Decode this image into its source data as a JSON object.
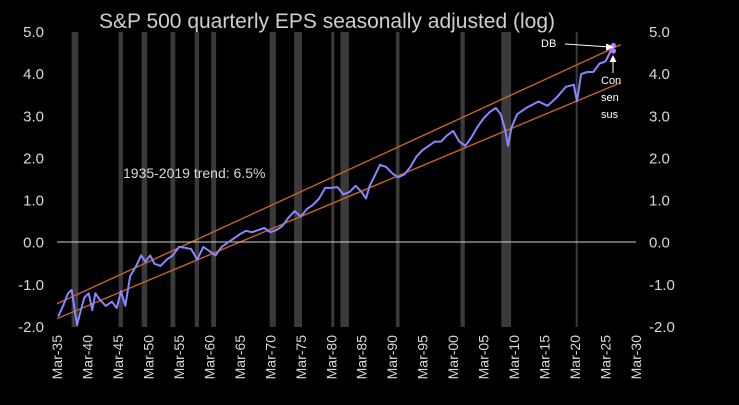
{
  "chart_data": {
    "type": "line",
    "title": "S&P 500 quarterly EPS seasonally adjusted (log)",
    "xlabel": "",
    "ylabel": "",
    "ylim": [
      -2.0,
      5.0
    ],
    "y_ticks": [
      "-2.0",
      "-1.0",
      "0.0",
      "1.0",
      "2.0",
      "3.0",
      "4.0",
      "5.0"
    ],
    "y_tick_values": [
      -2,
      -1,
      0,
      1,
      2,
      3,
      4,
      5
    ],
    "x_range": [
      1935,
      2030
    ],
    "x_tick_labels": [
      "Mar-35",
      "Mar-40",
      "Mar-45",
      "Mar-50",
      "Mar-55",
      "Mar-60",
      "Mar-65",
      "Mar-70",
      "Mar-75",
      "Mar-80",
      "Mar-85",
      "Mar-90",
      "Mar-95",
      "Mar-00",
      "Mar-05",
      "Mar-10",
      "Mar-15",
      "Mar-20",
      "Mar-25",
      "Mar-30"
    ],
    "x_tick_values": [
      1935,
      1940,
      1945,
      1950,
      1955,
      1960,
      1965,
      1970,
      1975,
      1980,
      1985,
      1990,
      1995,
      2000,
      2005,
      2010,
      2015,
      2020,
      2025,
      2030
    ],
    "grid": false,
    "recessions": [
      [
        1937.4,
        1938.5
      ],
      [
        1945.1,
        1945.8
      ],
      [
        1948.9,
        1949.8
      ],
      [
        1953.6,
        1954.4
      ],
      [
        1957.6,
        1958.3
      ],
      [
        1960.3,
        1961.1
      ],
      [
        1969.9,
        1970.9
      ],
      [
        1973.9,
        1975.2
      ],
      [
        1980.0,
        1980.5
      ],
      [
        1981.5,
        1982.9
      ],
      [
        1990.6,
        1991.2
      ],
      [
        2001.2,
        2001.9
      ],
      [
        2007.9,
        2009.5
      ],
      [
        2020.1,
        2020.4
      ]
    ],
    "series": [
      {
        "values": [
          {
            "x": 1935.2,
            "y": -1.75
          },
          {
            "x": 1936.0,
            "y": -1.5
          },
          {
            "x": 1936.8,
            "y": -1.2
          },
          {
            "x": 1937.4,
            "y": -1.12
          },
          {
            "x": 1937.9,
            "y": -1.6
          },
          {
            "x": 1938.3,
            "y": -1.95
          },
          {
            "x": 1938.9,
            "y": -1.6
          },
          {
            "x": 1939.5,
            "y": -1.3
          },
          {
            "x": 1940.2,
            "y": -1.2
          },
          {
            "x": 1940.8,
            "y": -1.6
          },
          {
            "x": 1941.3,
            "y": -1.2
          },
          {
            "x": 1942.0,
            "y": -1.35
          },
          {
            "x": 1943.0,
            "y": -1.5
          },
          {
            "x": 1944.0,
            "y": -1.4
          },
          {
            "x": 1944.8,
            "y": -1.55
          },
          {
            "x": 1945.5,
            "y": -1.15
          },
          {
            "x": 1946.2,
            "y": -1.5
          },
          {
            "x": 1947.0,
            "y": -0.8
          },
          {
            "x": 1948.0,
            "y": -0.55
          },
          {
            "x": 1948.8,
            "y": -0.3
          },
          {
            "x": 1949.5,
            "y": -0.45
          },
          {
            "x": 1950.3,
            "y": -0.3
          },
          {
            "x": 1951.0,
            "y": -0.5
          },
          {
            "x": 1952.0,
            "y": -0.55
          },
          {
            "x": 1953.0,
            "y": -0.4
          },
          {
            "x": 1954.0,
            "y": -0.3
          },
          {
            "x": 1955.0,
            "y": -0.1
          },
          {
            "x": 1956.0,
            "y": -0.12
          },
          {
            "x": 1957.0,
            "y": -0.15
          },
          {
            "x": 1958.0,
            "y": -0.4
          },
          {
            "x": 1959.0,
            "y": -0.1
          },
          {
            "x": 1960.0,
            "y": -0.2
          },
          {
            "x": 1961.0,
            "y": -0.3
          },
          {
            "x": 1962.0,
            "y": -0.1
          },
          {
            "x": 1963.0,
            "y": 0.0
          },
          {
            "x": 1964.0,
            "y": 0.1
          },
          {
            "x": 1965.0,
            "y": 0.2
          },
          {
            "x": 1966.0,
            "y": 0.28
          },
          {
            "x": 1967.0,
            "y": 0.25
          },
          {
            "x": 1968.0,
            "y": 0.3
          },
          {
            "x": 1969.0,
            "y": 0.35
          },
          {
            "x": 1970.0,
            "y": 0.25
          },
          {
            "x": 1971.0,
            "y": 0.3
          },
          {
            "x": 1972.0,
            "y": 0.4
          },
          {
            "x": 1973.0,
            "y": 0.6
          },
          {
            "x": 1974.0,
            "y": 0.75
          },
          {
            "x": 1975.0,
            "y": 0.62
          },
          {
            "x": 1976.0,
            "y": 0.8
          },
          {
            "x": 1977.0,
            "y": 0.9
          },
          {
            "x": 1978.0,
            "y": 1.05
          },
          {
            "x": 1979.0,
            "y": 1.3
          },
          {
            "x": 1980.0,
            "y": 1.3
          },
          {
            "x": 1981.0,
            "y": 1.32
          },
          {
            "x": 1982.0,
            "y": 1.15
          },
          {
            "x": 1983.0,
            "y": 1.2
          },
          {
            "x": 1984.0,
            "y": 1.35
          },
          {
            "x": 1985.0,
            "y": 1.2
          },
          {
            "x": 1985.7,
            "y": 1.05
          },
          {
            "x": 1986.3,
            "y": 1.35
          },
          {
            "x": 1987.0,
            "y": 1.55
          },
          {
            "x": 1988.0,
            "y": 1.85
          },
          {
            "x": 1989.0,
            "y": 1.8
          },
          {
            "x": 1990.0,
            "y": 1.65
          },
          {
            "x": 1991.0,
            "y": 1.55
          },
          {
            "x": 1992.0,
            "y": 1.62
          },
          {
            "x": 1993.0,
            "y": 1.8
          },
          {
            "x": 1994.0,
            "y": 2.05
          },
          {
            "x": 1995.0,
            "y": 2.2
          },
          {
            "x": 1996.0,
            "y": 2.3
          },
          {
            "x": 1997.0,
            "y": 2.4
          },
          {
            "x": 1998.0,
            "y": 2.4
          },
          {
            "x": 1999.0,
            "y": 2.55
          },
          {
            "x": 2000.0,
            "y": 2.65
          },
          {
            "x": 2001.0,
            "y": 2.4
          },
          {
            "x": 2002.0,
            "y": 2.3
          },
          {
            "x": 2003.0,
            "y": 2.5
          },
          {
            "x": 2004.0,
            "y": 2.75
          },
          {
            "x": 2005.0,
            "y": 2.95
          },
          {
            "x": 2006.0,
            "y": 3.1
          },
          {
            "x": 2007.0,
            "y": 3.2
          },
          {
            "x": 2007.8,
            "y": 3.05
          },
          {
            "x": 2008.5,
            "y": 2.7
          },
          {
            "x": 2009.0,
            "y": 2.3
          },
          {
            "x": 2009.6,
            "y": 2.75
          },
          {
            "x": 2010.5,
            "y": 3.05
          },
          {
            "x": 2012.0,
            "y": 3.2
          },
          {
            "x": 2014.0,
            "y": 3.35
          },
          {
            "x": 2015.5,
            "y": 3.25
          },
          {
            "x": 2017.0,
            "y": 3.45
          },
          {
            "x": 2018.5,
            "y": 3.7
          },
          {
            "x": 2019.8,
            "y": 3.75
          },
          {
            "x": 2020.3,
            "y": 3.35
          },
          {
            "x": 2021.0,
            "y": 4.0
          },
          {
            "x": 2022.0,
            "y": 4.05
          },
          {
            "x": 2023.0,
            "y": 4.05
          },
          {
            "x": 2024.0,
            "y": 4.25
          },
          {
            "x": 2025.0,
            "y": 4.3
          }
        ]
      }
    ],
    "trend_bands": [
      {
        "points": [
          {
            "x": 1935,
            "y": -1.8
          },
          {
            "x": 2027.5,
            "y": 3.8
          }
        ]
      },
      {
        "points": [
          {
            "x": 1935,
            "y": -1.45
          },
          {
            "x": 2027.5,
            "y": 4.7
          }
        ]
      }
    ],
    "projection_points": [
      {
        "x": 2026.3,
        "y": 4.68
      },
      {
        "x": 2026.3,
        "y": 4.55
      }
    ],
    "annotations": [
      {
        "text": "1935-2019 trend: 6.5%"
      },
      {
        "text": "DB"
      },
      {
        "text": "Con"
      },
      {
        "text": "sen"
      },
      {
        "text": "sus"
      }
    ],
    "colors": {
      "background": "#000000",
      "series": "#8a86ff",
      "trend": "#c8641e",
      "recession": "#3a3a3a",
      "text": "#d8d8d8",
      "projection": "#b07cff"
    }
  }
}
